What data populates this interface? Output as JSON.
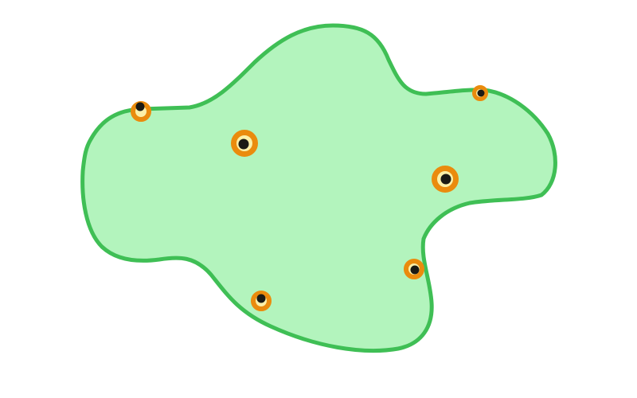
{
  "colors": {
    "background": "#ffffff",
    "region_fill": "#b3f4bd",
    "region_outline": "#3fbf55",
    "marker_ring": "#ea8b0d",
    "marker_inner": "#fbf0a8",
    "marker_dot": "#1a1a14"
  },
  "region": {
    "name": "green-blob-region"
  },
  "markers": [
    {
      "id": "marker-1",
      "size": "medium"
    },
    {
      "id": "marker-2",
      "size": "large"
    },
    {
      "id": "marker-3",
      "size": "small"
    },
    {
      "id": "marker-4",
      "size": "large"
    },
    {
      "id": "marker-5",
      "size": "medium"
    },
    {
      "id": "marker-6",
      "size": "medium"
    }
  ]
}
